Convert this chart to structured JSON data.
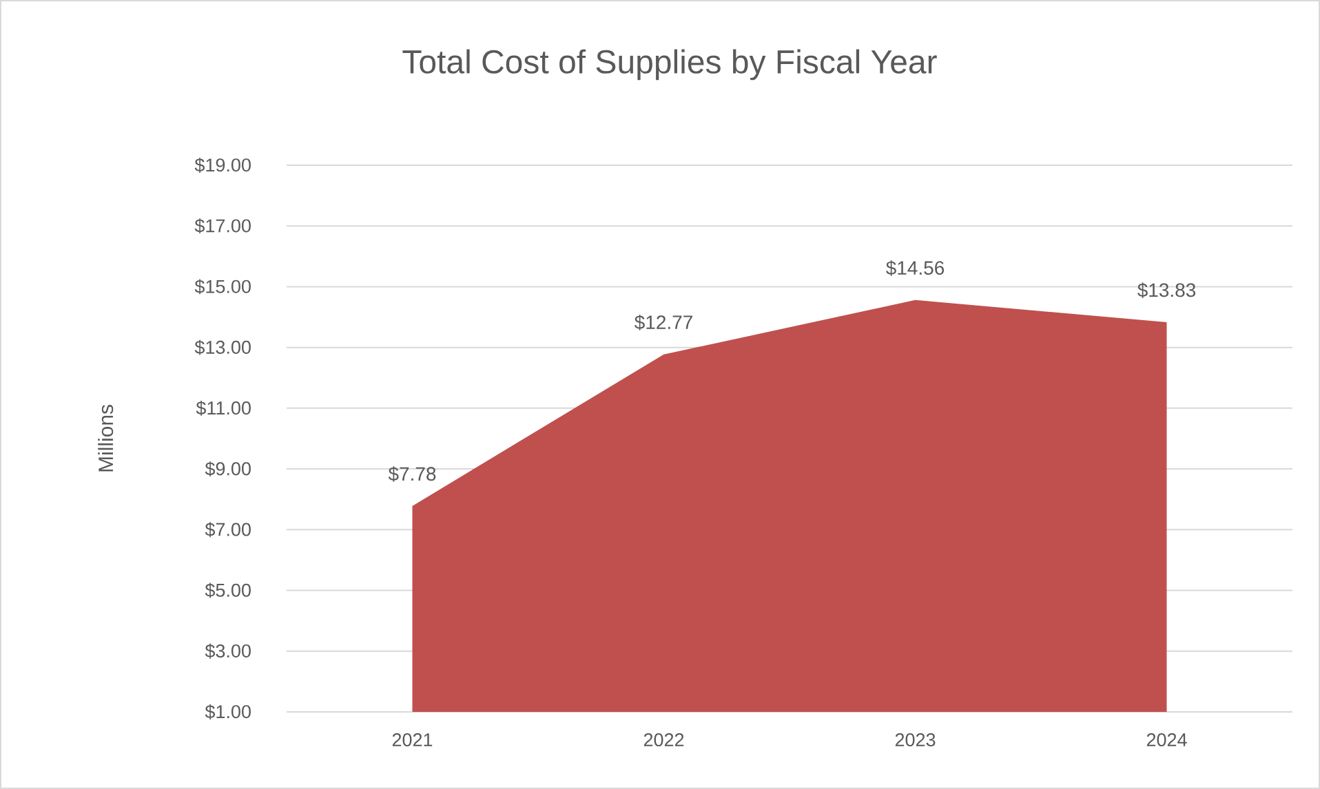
{
  "chart_data": {
    "type": "area",
    "title": "Total Cost of Supplies by Fiscal Year",
    "ylabel": "Millions",
    "categories": [
      "2021",
      "2022",
      "2023",
      "2024"
    ],
    "values": [
      7.78,
      12.77,
      14.56,
      13.83
    ],
    "value_labels": [
      "$7.78",
      "$12.77",
      "$14.56",
      "$13.83"
    ],
    "color": "#c0504d",
    "ylim": [
      1,
      19
    ],
    "yticks": [
      {
        "value": 1,
        "label": "$1.00"
      },
      {
        "value": 3,
        "label": "$3.00"
      },
      {
        "value": 5,
        "label": "$5.00"
      },
      {
        "value": 7,
        "label": "$7.00"
      },
      {
        "value": 9,
        "label": "$9.00"
      },
      {
        "value": 11,
        "label": "$11.00"
      },
      {
        "value": 13,
        "label": "$13.00"
      },
      {
        "value": 15,
        "label": "$15.00"
      },
      {
        "value": 17,
        "label": "$17.00"
      },
      {
        "value": 19,
        "label": "$19.00"
      }
    ],
    "grid": "y"
  }
}
